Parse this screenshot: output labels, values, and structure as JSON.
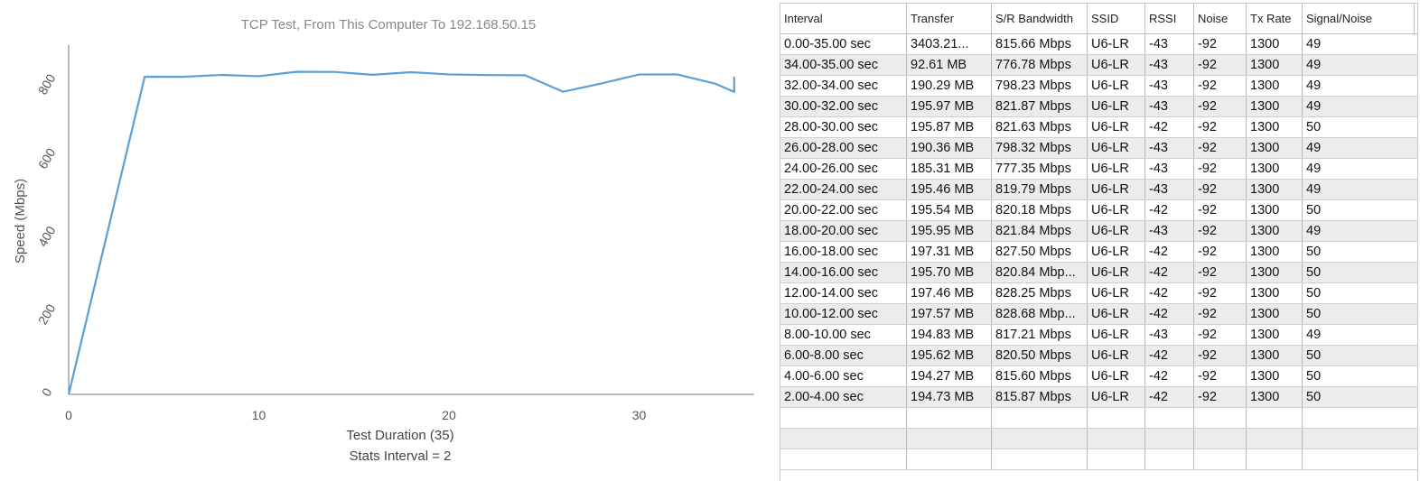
{
  "chart_data": {
    "type": "line",
    "title": "TCP Test,  From This Computer To 192.168.50.15",
    "xlabel": "Test Duration (35)",
    "subtitle": "Stats Interval = 2",
    "ylabel": "Speed (Mbps)",
    "xlim": [
      0,
      35
    ],
    "ylim": [
      0,
      800
    ],
    "xticks": [
      "0",
      "10",
      "20",
      "30"
    ],
    "yticks": [
      "0",
      "200",
      "400",
      "600",
      "800"
    ],
    "grid": false,
    "color": "#5a9fd6",
    "x": [
      0,
      4,
      6,
      8,
      10,
      12,
      14,
      16,
      18,
      20,
      22,
      24,
      26,
      28,
      30,
      32,
      34,
      35,
      35
    ],
    "y": [
      0,
      815.87,
      815.6,
      820.5,
      817.21,
      828.68,
      828.25,
      820.84,
      827.5,
      821.84,
      820.18,
      819.79,
      777.35,
      798.32,
      821.63,
      821.87,
      798.23,
      776.78,
      815.66
    ]
  },
  "table": {
    "columns": [
      "Interval",
      "Transfer",
      "S/R Bandwidth",
      "SSID",
      "RSSI",
      "Noise",
      "Tx Rate",
      "Signal/Noise"
    ],
    "rows": [
      [
        "0.00-35.00 sec",
        "3403.21...",
        "815.66 Mbps",
        "U6-LR",
        "-43",
        "-92",
        "1300",
        "49"
      ],
      [
        "34.00-35.00 sec",
        "92.61 MB",
        "776.78 Mbps",
        "U6-LR",
        "-43",
        "-92",
        "1300",
        "49"
      ],
      [
        "32.00-34.00 sec",
        "190.29 MB",
        "798.23 Mbps",
        "U6-LR",
        "-43",
        "-92",
        "1300",
        "49"
      ],
      [
        "30.00-32.00 sec",
        "195.97 MB",
        "821.87 Mbps",
        "U6-LR",
        "-43",
        "-92",
        "1300",
        "49"
      ],
      [
        "28.00-30.00 sec",
        "195.87 MB",
        "821.63 Mbps",
        "U6-LR",
        "-42",
        "-92",
        "1300",
        "50"
      ],
      [
        "26.00-28.00 sec",
        "190.36 MB",
        "798.32 Mbps",
        "U6-LR",
        "-43",
        "-92",
        "1300",
        "49"
      ],
      [
        "24.00-26.00 sec",
        "185.31 MB",
        "777.35 Mbps",
        "U6-LR",
        "-43",
        "-92",
        "1300",
        "49"
      ],
      [
        "22.00-24.00 sec",
        "195.46 MB",
        "819.79 Mbps",
        "U6-LR",
        "-43",
        "-92",
        "1300",
        "49"
      ],
      [
        "20.00-22.00 sec",
        "195.54 MB",
        "820.18 Mbps",
        "U6-LR",
        "-42",
        "-92",
        "1300",
        "50"
      ],
      [
        "18.00-20.00 sec",
        "195.95 MB",
        "821.84 Mbps",
        "U6-LR",
        "-43",
        "-92",
        "1300",
        "49"
      ],
      [
        "16.00-18.00 sec",
        "197.31 MB",
        "827.50 Mbps",
        "U6-LR",
        "-42",
        "-92",
        "1300",
        "50"
      ],
      [
        "14.00-16.00 sec",
        "195.70 MB",
        "820.84 Mbp...",
        "U6-LR",
        "-42",
        "-92",
        "1300",
        "50"
      ],
      [
        "12.00-14.00 sec",
        "197.46 MB",
        "828.25 Mbps",
        "U6-LR",
        "-42",
        "-92",
        "1300",
        "50"
      ],
      [
        "10.00-12.00 sec",
        "197.57 MB",
        "828.68 Mbp...",
        "U6-LR",
        "-42",
        "-92",
        "1300",
        "50"
      ],
      [
        "8.00-10.00 sec",
        "194.83 MB",
        "817.21 Mbps",
        "U6-LR",
        "-43",
        "-92",
        "1300",
        "49"
      ],
      [
        "6.00-8.00 sec",
        "195.62 MB",
        "820.50 Mbps",
        "U6-LR",
        "-42",
        "-92",
        "1300",
        "50"
      ],
      [
        "4.00-6.00 sec",
        "194.27 MB",
        "815.60 Mbps",
        "U6-LR",
        "-42",
        "-92",
        "1300",
        "50"
      ],
      [
        "2.00-4.00 sec",
        "194.73 MB",
        "815.87 Mbps",
        "U6-LR",
        "-42",
        "-92",
        "1300",
        "50"
      ]
    ]
  }
}
